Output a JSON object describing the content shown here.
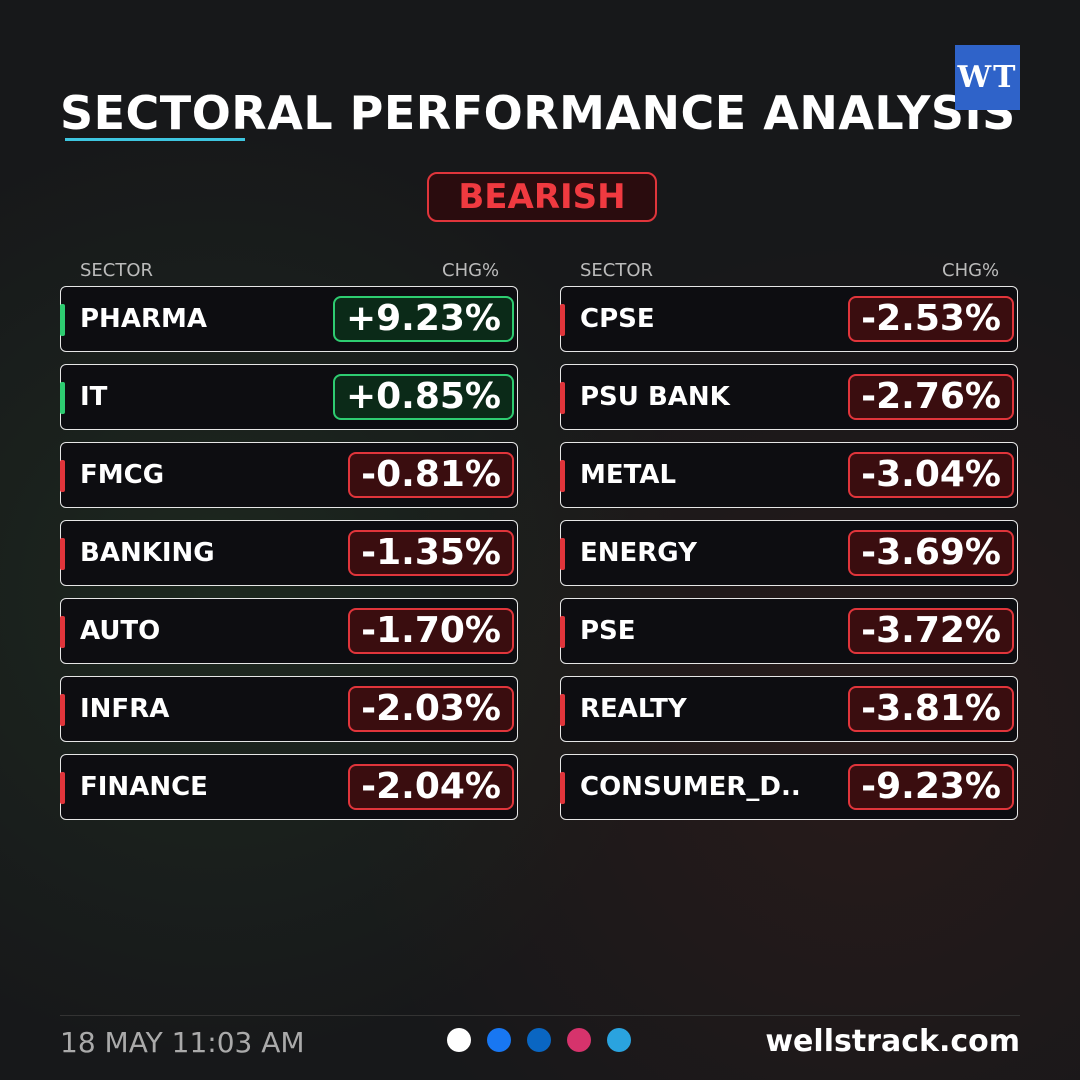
{
  "header": {
    "title": "SECTORAL PERFORMANCE ANALYSIS",
    "logo": "WT",
    "badge": "BEARISH"
  },
  "columns": [
    {
      "headers": [
        "SECTOR",
        "CHG%"
      ],
      "rows": [
        [
          "PHARMA",
          "+9.23%"
        ],
        [
          "IT",
          "+0.85%"
        ],
        [
          "FMCG",
          "-0.81%"
        ],
        [
          "BANKING",
          "-1.35%"
        ],
        [
          "AUTO",
          "-1.70%"
        ],
        [
          "INFRA",
          "-2.03%"
        ],
        [
          "FINANCE",
          "-2.04%"
        ]
      ]
    },
    {
      "headers": [
        "SECTOR",
        "CHG%"
      ],
      "rows": [
        [
          "CPSE",
          "-2.53%"
        ],
        [
          "PSU BANK",
          "-2.76%"
        ],
        [
          "METAL",
          "-3.04%"
        ],
        [
          "ENERGY",
          "-3.69%"
        ],
        [
          "PSE",
          "-3.72%"
        ],
        [
          "REALTY",
          "-3.81%"
        ],
        [
          "CONSUMER_D..",
          "-9.23%"
        ]
      ]
    }
  ],
  "footer": {
    "date": "18 MAY 11:03 AM",
    "website": "wellstrack.com"
  }
}
